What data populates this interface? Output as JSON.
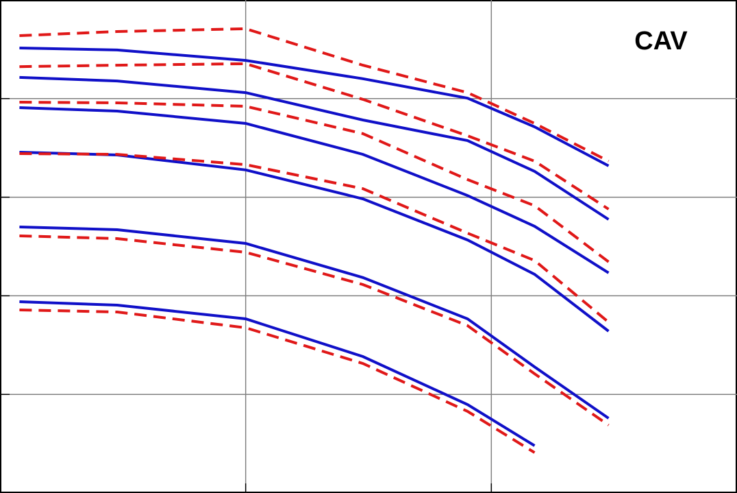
{
  "chart_data": {
    "type": "line",
    "annotation": "CAV",
    "x": [
      0.12,
      0.3,
      1,
      3,
      8,
      15,
      30
    ],
    "xlim": [
      0.1,
      100
    ],
    "ylim": [
      1e-05,
      1
    ],
    "xticks": [
      1,
      10
    ],
    "yticks": [
      0.0001,
      0.001,
      0.01,
      0.1
    ],
    "xscale": "log",
    "yscale": "log",
    "grid": true,
    "series": [
      {
        "color": "#1010c8",
        "line_style": "solid",
        "values": [
          0.326,
          0.311,
          0.244,
          0.159,
          0.101,
          0.0517,
          0.0208
        ]
      },
      {
        "color": "#e01818",
        "line_style": "dashed",
        "values": [
          0.435,
          0.479,
          0.511,
          0.218,
          0.115,
          0.056,
          0.0232
        ]
      },
      {
        "color": "#1010c8",
        "line_style": "solid",
        "values": [
          0.164,
          0.151,
          0.115,
          0.0607,
          0.0375,
          0.0183,
          0.00595
        ]
      },
      {
        "color": "#e01818",
        "line_style": "dashed",
        "values": [
          0.211,
          0.218,
          0.226,
          0.0982,
          0.042,
          0.0232,
          0.00757
        ]
      },
      {
        "color": "#1010c8",
        "line_style": "solid",
        "values": [
          0.081,
          0.0747,
          0.056,
          0.0272,
          0.0104,
          0.00507,
          0.00171
        ]
      },
      {
        "color": "#e01818",
        "line_style": "dashed",
        "values": [
          0.092,
          0.0906,
          0.0836,
          0.0441,
          0.0151,
          0.0082,
          0.00221
        ]
      },
      {
        "color": "#1010c8",
        "line_style": "solid",
        "values": [
          0.0286,
          0.0268,
          0.0189,
          0.00962,
          0.00368,
          0.00165,
          0.000438
        ]
      },
      {
        "color": "#e01818",
        "line_style": "dashed",
        "values": [
          0.0277,
          0.0272,
          0.0214,
          0.0122,
          0.00432,
          0.00228,
          0.00054
        ]
      },
      {
        "color": "#1010c8",
        "line_style": "solid",
        "values": [
          0.00499,
          0.00468,
          0.0034,
          0.00153,
          0.000584,
          0.00019,
          5.73e-05
        ]
      },
      {
        "color": "#e01818",
        "line_style": "dashed",
        "values": [
          0.00405,
          0.0038,
          0.00276,
          0.0013,
          0.000498,
          0.000162,
          4.88e-05
        ]
      },
      {
        "color": "#1010c8",
        "line_style": "solid",
        "values": [
          0.000871,
          0.000804,
          0.000584,
          0.000242,
          7.89e-05,
          3.02e-05,
          null
        ]
      },
      {
        "color": "#e01818",
        "line_style": "dashed",
        "values": [
          0.000719,
          0.000685,
          0.000474,
          0.000206,
          6.73e-05,
          2.57e-05,
          null
        ]
      }
    ]
  }
}
